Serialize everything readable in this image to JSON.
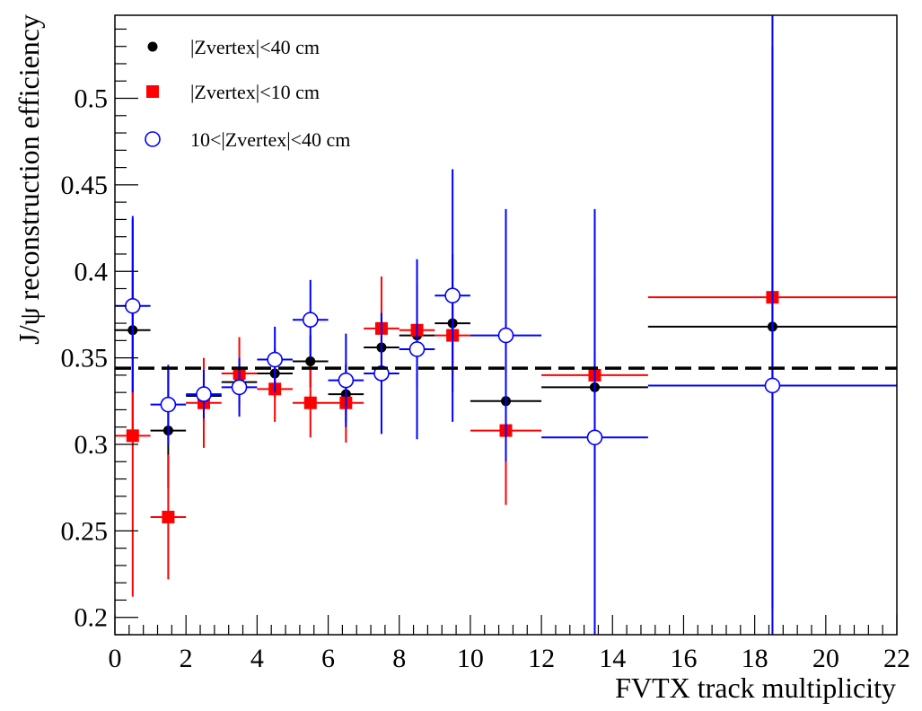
{
  "chart_data": {
    "type": "scatter",
    "title": "",
    "xlabel": "FVTX track multiplicity",
    "ylabel": "J/ψ reconstruction efficiency",
    "xlim": [
      0,
      22
    ],
    "ylim": [
      0.19,
      0.548
    ],
    "x_ticks": [
      "0",
      "2",
      "4",
      "6",
      "8",
      "10",
      "12",
      "14",
      "16",
      "18",
      "20",
      "22"
    ],
    "y_ticks": [
      "0.2",
      "0.25",
      "0.3",
      "0.35",
      "0.4",
      "0.45",
      "0.5"
    ],
    "x_tick_values": [
      0,
      2,
      4,
      6,
      8,
      10,
      12,
      14,
      16,
      18,
      20,
      22
    ],
    "y_tick_values": [
      0.2,
      0.25,
      0.3,
      0.35,
      0.4,
      0.45,
      0.5
    ],
    "grid": false,
    "legend_position": "top-left",
    "reference_line": {
      "y": 0.344,
      "style": "dashed",
      "color": "#000000"
    },
    "series": [
      {
        "name": "|Zvertex|<40 cm",
        "marker": "filled-circle",
        "color": "#000000",
        "points": [
          {
            "x": 0.5,
            "xerr": 0.5,
            "y": 0.366,
            "ylow": 0.303,
            "yhigh": 0.43
          },
          {
            "x": 1.5,
            "xerr": 0.5,
            "y": 0.308,
            "ylow": 0.275,
            "yhigh": 0.344
          },
          {
            "x": 2.5,
            "xerr": 0.5,
            "y": 0.328,
            "ylow": 0.313,
            "yhigh": 0.343
          },
          {
            "x": 3.5,
            "xerr": 0.5,
            "y": 0.336,
            "ylow": 0.323,
            "yhigh": 0.349
          },
          {
            "x": 4.5,
            "xerr": 0.5,
            "y": 0.341,
            "ylow": 0.327,
            "yhigh": 0.355
          },
          {
            "x": 5.5,
            "xerr": 0.5,
            "y": 0.348,
            "ylow": 0.333,
            "yhigh": 0.363
          },
          {
            "x": 6.5,
            "xerr": 0.5,
            "y": 0.329,
            "ylow": 0.313,
            "yhigh": 0.346
          },
          {
            "x": 7.5,
            "xerr": 0.5,
            "y": 0.356,
            "ylow": 0.336,
            "yhigh": 0.376
          },
          {
            "x": 8.5,
            "xerr": 0.5,
            "y": 0.363,
            "ylow": 0.333,
            "yhigh": 0.393
          },
          {
            "x": 9.5,
            "xerr": 0.5,
            "y": 0.37,
            "ylow": 0.33,
            "yhigh": 0.41
          },
          {
            "x": 11,
            "xerr": 1.0,
            "y": 0.325,
            "ylow": 0.29,
            "yhigh": 0.36
          },
          {
            "x": 13.5,
            "xerr": 1.5,
            "y": 0.333,
            "ylow": 0.27,
            "yhigh": 0.396
          },
          {
            "x": 18.5,
            "xerr": 3.5,
            "y": 0.368,
            "ylow": 0.205,
            "yhigh": 0.53
          }
        ]
      },
      {
        "name": "|Zvertex|<10 cm",
        "marker": "filled-square",
        "color": "#ff0000",
        "points": [
          {
            "x": 0.5,
            "xerr": 0.5,
            "y": 0.305,
            "ylow": 0.212,
            "yhigh": 0.398
          },
          {
            "x": 1.5,
            "xerr": 0.5,
            "y": 0.258,
            "ylow": 0.222,
            "yhigh": 0.294
          },
          {
            "x": 2.5,
            "xerr": 0.5,
            "y": 0.324,
            "ylow": 0.298,
            "yhigh": 0.35
          },
          {
            "x": 3.5,
            "xerr": 0.5,
            "y": 0.341,
            "ylow": 0.32,
            "yhigh": 0.362
          },
          {
            "x": 4.5,
            "xerr": 0.5,
            "y": 0.332,
            "ylow": 0.313,
            "yhigh": 0.352
          },
          {
            "x": 5.5,
            "xerr": 0.5,
            "y": 0.324,
            "ylow": 0.304,
            "yhigh": 0.345
          },
          {
            "x": 6.5,
            "xerr": 0.5,
            "y": 0.324,
            "ylow": 0.301,
            "yhigh": 0.347
          },
          {
            "x": 7.5,
            "xerr": 0.5,
            "y": 0.367,
            "ylow": 0.337,
            "yhigh": 0.397
          },
          {
            "x": 8.5,
            "xerr": 0.5,
            "y": 0.366,
            "ylow": 0.343,
            "yhigh": 0.39
          },
          {
            "x": 9.5,
            "xerr": 0.5,
            "y": 0.363,
            "ylow": 0.34,
            "yhigh": 0.386
          },
          {
            "x": 11,
            "xerr": 1.0,
            "y": 0.308,
            "ylow": 0.265,
            "yhigh": 0.351
          },
          {
            "x": 13.5,
            "xerr": 1.5,
            "y": 0.34,
            "ylow": 0.31,
            "yhigh": 0.371
          },
          {
            "x": 18.5,
            "xerr": 3.5,
            "y": 0.385,
            "ylow": 0.34,
            "yhigh": 0.43
          }
        ]
      },
      {
        "name": "10<|Zvertex|<40 cm",
        "marker": "open-circle",
        "color": "#0000ff",
        "points": [
          {
            "x": 0.5,
            "xerr": 0.5,
            "y": 0.38,
            "ylow": 0.33,
            "yhigh": 0.432
          },
          {
            "x": 1.5,
            "xerr": 0.5,
            "y": 0.323,
            "ylow": 0.3,
            "yhigh": 0.346
          },
          {
            "x": 2.5,
            "xerr": 0.5,
            "y": 0.329,
            "ylow": 0.315,
            "yhigh": 0.343
          },
          {
            "x": 3.5,
            "xerr": 0.5,
            "y": 0.333,
            "ylow": 0.316,
            "yhigh": 0.35
          },
          {
            "x": 4.5,
            "xerr": 0.5,
            "y": 0.349,
            "ylow": 0.33,
            "yhigh": 0.368
          },
          {
            "x": 5.5,
            "xerr": 0.5,
            "y": 0.372,
            "ylow": 0.35,
            "yhigh": 0.395
          },
          {
            "x": 6.5,
            "xerr": 0.5,
            "y": 0.337,
            "ylow": 0.31,
            "yhigh": 0.364
          },
          {
            "x": 7.5,
            "xerr": 0.5,
            "y": 0.341,
            "ylow": 0.306,
            "yhigh": 0.376
          },
          {
            "x": 8.5,
            "xerr": 0.5,
            "y": 0.355,
            "ylow": 0.303,
            "yhigh": 0.407
          },
          {
            "x": 9.5,
            "xerr": 0.5,
            "y": 0.386,
            "ylow": 0.313,
            "yhigh": 0.459
          },
          {
            "x": 11,
            "xerr": 1.0,
            "y": 0.363,
            "ylow": 0.29,
            "yhigh": 0.436
          },
          {
            "x": 13.5,
            "xerr": 1.5,
            "y": 0.304,
            "ylow": 0.19,
            "yhigh": 0.436
          },
          {
            "x": 18.5,
            "xerr": 3.5,
            "y": 0.334,
            "ylow": 0.19,
            "yhigh": 0.548
          }
        ]
      }
    ]
  }
}
